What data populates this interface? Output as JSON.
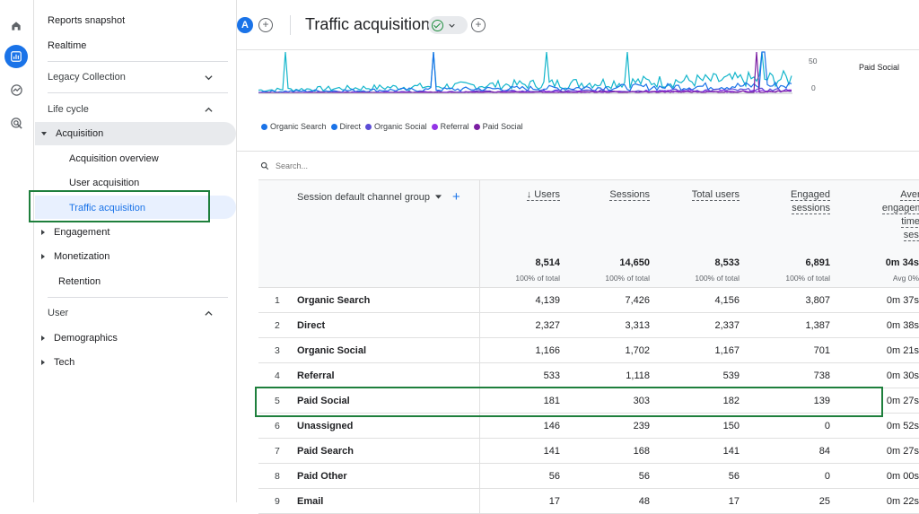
{
  "nav": {
    "reports_snapshot": "Reports snapshot",
    "realtime": "Realtime",
    "legacy_collection": "Legacy Collection",
    "life_cycle": "Life cycle",
    "acquisition": "Acquisition",
    "acquisition_overview": "Acquisition overview",
    "user_acquisition": "User acquisition",
    "traffic_acquisition": "Traffic acquisition",
    "engagement": "Engagement",
    "monetization": "Monetization",
    "retention": "Retention",
    "user": "User",
    "demographics": "Demographics",
    "tech": "Tech"
  },
  "header": {
    "avatar_letter": "A",
    "title": "Traffic acquisition"
  },
  "chart": {
    "y_ticks": [
      "50",
      "0"
    ],
    "side_label": "Paid Social",
    "legend": [
      {
        "label": "Organic Search",
        "color": "#1a73e8"
      },
      {
        "label": "Direct",
        "color": "#12b5cb"
      },
      {
        "label": "Organic Social",
        "color": "#5c4dd6"
      },
      {
        "label": "Referral",
        "color": "#9334e6"
      },
      {
        "label": "Paid Social",
        "color": "#7b1fa2"
      }
    ]
  },
  "search": {
    "placeholder": "Search..."
  },
  "table": {
    "dimension_header": "Session default channel group",
    "columns": [
      {
        "label": "↓ Users",
        "total": "8,514",
        "sub": "100% of total"
      },
      {
        "label": "Sessions",
        "total": "14,650",
        "sub": "100% of total"
      },
      {
        "label": "Total users",
        "total": "8,533",
        "sub": "100% of total"
      },
      {
        "label": "Engaged sessions",
        "total": "6,891",
        "sub": "100% of total"
      },
      {
        "label": "Average engagement time per session",
        "total": "0m 34s",
        "sub": "Avg 0%"
      }
    ],
    "rows": [
      {
        "idx": "1",
        "name": "Organic Search",
        "cells": [
          "4,139",
          "7,426",
          "4,156",
          "3,807",
          "0m 37s"
        ]
      },
      {
        "idx": "2",
        "name": "Direct",
        "cells": [
          "2,327",
          "3,313",
          "2,337",
          "1,387",
          "0m 38s"
        ]
      },
      {
        "idx": "3",
        "name": "Organic Social",
        "cells": [
          "1,166",
          "1,702",
          "1,167",
          "701",
          "0m 21s"
        ]
      },
      {
        "idx": "4",
        "name": "Referral",
        "cells": [
          "533",
          "1,118",
          "539",
          "738",
          "0m 30s"
        ]
      },
      {
        "idx": "5",
        "name": "Paid Social",
        "cells": [
          "181",
          "303",
          "182",
          "139",
          "0m 27s"
        ]
      },
      {
        "idx": "6",
        "name": "Unassigned",
        "cells": [
          "146",
          "239",
          "150",
          "0",
          "0m 52s"
        ]
      },
      {
        "idx": "7",
        "name": "Paid Search",
        "cells": [
          "141",
          "168",
          "141",
          "84",
          "0m 27s"
        ]
      },
      {
        "idx": "8",
        "name": "Paid Other",
        "cells": [
          "56",
          "56",
          "56",
          "0",
          "0m 00s"
        ]
      },
      {
        "idx": "9",
        "name": "Email",
        "cells": [
          "17",
          "48",
          "17",
          "25",
          "0m 22s"
        ]
      }
    ]
  }
}
